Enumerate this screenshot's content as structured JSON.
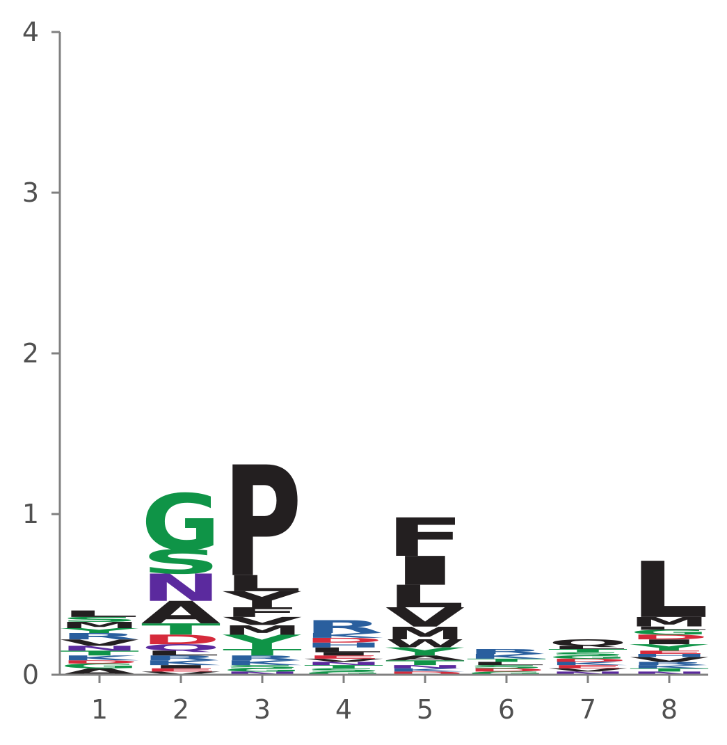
{
  "chart_data": {
    "type": "sequence-logo",
    "title": "",
    "xlabel": "",
    "ylabel": "",
    "ylim": [
      0,
      4
    ],
    "y_ticks": [
      "0",
      "1",
      "2",
      "3",
      "4"
    ],
    "x_ticks": [
      "1",
      "2",
      "3",
      "4",
      "5",
      "6",
      "7",
      "8"
    ],
    "colors": {
      "black": "#231f20",
      "green": "#0f9447",
      "purple": "#5b2a9e",
      "red": "#d62a3b",
      "blue": "#2a5f9e",
      "axis": "#808080",
      "tick_text": "#505050"
    },
    "positions": [
      {
        "position": "1",
        "letters": [
          {
            "letter": "A",
            "value": 0.04,
            "color": "black"
          },
          {
            "letter": "G",
            "value": 0.03,
            "color": "green"
          },
          {
            "letter": "D",
            "value": 0.02,
            "color": "red"
          },
          {
            "letter": "K",
            "value": 0.03,
            "color": "blue"
          },
          {
            "letter": "T",
            "value": 0.03,
            "color": "green"
          },
          {
            "letter": "N",
            "value": 0.03,
            "color": "purple"
          },
          {
            "letter": "V",
            "value": 0.04,
            "color": "black"
          },
          {
            "letter": "R",
            "value": 0.04,
            "color": "blue"
          },
          {
            "letter": "Y",
            "value": 0.03,
            "color": "green"
          },
          {
            "letter": "M",
            "value": 0.04,
            "color": "black"
          },
          {
            "letter": "S",
            "value": 0.03,
            "color": "green"
          },
          {
            "letter": "L",
            "value": 0.04,
            "color": "black"
          }
        ]
      },
      {
        "position": "2",
        "letters": [
          {
            "letter": "V",
            "value": 0.02,
            "color": "black"
          },
          {
            "letter": "E",
            "value": 0.02,
            "color": "red"
          },
          {
            "letter": "I",
            "value": 0.02,
            "color": "black"
          },
          {
            "letter": "K",
            "value": 0.03,
            "color": "blue"
          },
          {
            "letter": "R",
            "value": 0.03,
            "color": "blue"
          },
          {
            "letter": "L",
            "value": 0.03,
            "color": "black"
          },
          {
            "letter": "Q",
            "value": 0.04,
            "color": "purple"
          },
          {
            "letter": "D",
            "value": 0.06,
            "color": "red"
          },
          {
            "letter": "T",
            "value": 0.07,
            "color": "green"
          },
          {
            "letter": "A",
            "value": 0.14,
            "color": "black"
          },
          {
            "letter": "N",
            "value": 0.17,
            "color": "purple"
          },
          {
            "letter": "S",
            "value": 0.15,
            "color": "green"
          },
          {
            "letter": "G",
            "value": 0.35,
            "color": "green"
          }
        ]
      },
      {
        "position": "3",
        "letters": [
          {
            "letter": "N",
            "value": 0.02,
            "color": "purple"
          },
          {
            "letter": "G",
            "value": 0.02,
            "color": "green"
          },
          {
            "letter": "S",
            "value": 0.02,
            "color": "green"
          },
          {
            "letter": "K",
            "value": 0.03,
            "color": "blue"
          },
          {
            "letter": "R",
            "value": 0.03,
            "color": "blue"
          },
          {
            "letter": "T",
            "value": 0.04,
            "color": "green"
          },
          {
            "letter": "Y",
            "value": 0.09,
            "color": "green"
          },
          {
            "letter": "M",
            "value": 0.06,
            "color": "black"
          },
          {
            "letter": "V",
            "value": 0.05,
            "color": "black"
          },
          {
            "letter": "F",
            "value": 0.06,
            "color": "black"
          },
          {
            "letter": "Y",
            "value": 0.1,
            "color": "black"
          },
          {
            "letter": "L",
            "value": 0.1,
            "color": "black"
          },
          {
            "letter": "P",
            "value": 0.69,
            "color": "black"
          }
        ]
      },
      {
        "position": "4",
        "letters": [
          {
            "letter": "G",
            "value": 0.02,
            "color": "green"
          },
          {
            "letter": "S",
            "value": 0.02,
            "color": "green"
          },
          {
            "letter": "T",
            "value": 0.02,
            "color": "green"
          },
          {
            "letter": "N",
            "value": 0.02,
            "color": "purple"
          },
          {
            "letter": "V",
            "value": 0.02,
            "color": "black"
          },
          {
            "letter": "E",
            "value": 0.02,
            "color": "red"
          },
          {
            "letter": "I",
            "value": 0.02,
            "color": "black"
          },
          {
            "letter": "L",
            "value": 0.03,
            "color": "black"
          },
          {
            "letter": "H",
            "value": 0.03,
            "color": "blue"
          },
          {
            "letter": "D",
            "value": 0.03,
            "color": "red"
          },
          {
            "letter": "K",
            "value": 0.03,
            "color": "blue"
          },
          {
            "letter": "R",
            "value": 0.08,
            "color": "blue"
          }
        ]
      },
      {
        "position": "5",
        "letters": [
          {
            "letter": "D",
            "value": 0.02,
            "color": "red"
          },
          {
            "letter": "K",
            "value": 0.02,
            "color": "blue"
          },
          {
            "letter": "N",
            "value": 0.02,
            "color": "purple"
          },
          {
            "letter": "T",
            "value": 0.03,
            "color": "green"
          },
          {
            "letter": "A",
            "value": 0.03,
            "color": "black"
          },
          {
            "letter": "Y",
            "value": 0.05,
            "color": "green"
          },
          {
            "letter": "W",
            "value": 0.05,
            "color": "black"
          },
          {
            "letter": "M",
            "value": 0.08,
            "color": "black"
          },
          {
            "letter": "V",
            "value": 0.12,
            "color": "black"
          },
          {
            "letter": "L",
            "value": 0.14,
            "color": "black"
          },
          {
            "letter": "I",
            "value": 0.18,
            "color": "black"
          },
          {
            "letter": "F",
            "value": 0.24,
            "color": "black"
          }
        ]
      },
      {
        "position": "6",
        "letters": [
          {
            "letter": "G",
            "value": 0.02,
            "color": "green"
          },
          {
            "letter": "D",
            "value": 0.02,
            "color": "red"
          },
          {
            "letter": "S",
            "value": 0.02,
            "color": "green"
          },
          {
            "letter": "L",
            "value": 0.02,
            "color": "black"
          },
          {
            "letter": "T",
            "value": 0.02,
            "color": "green"
          },
          {
            "letter": "K",
            "value": 0.03,
            "color": "blue"
          },
          {
            "letter": "R",
            "value": 0.03,
            "color": "blue"
          }
        ]
      },
      {
        "position": "7",
        "letters": [
          {
            "letter": "N",
            "value": 0.02,
            "color": "purple"
          },
          {
            "letter": "V",
            "value": 0.02,
            "color": "black"
          },
          {
            "letter": "E",
            "value": 0.02,
            "color": "red"
          },
          {
            "letter": "K",
            "value": 0.02,
            "color": "blue"
          },
          {
            "letter": "D",
            "value": 0.02,
            "color": "red"
          },
          {
            "letter": "G",
            "value": 0.02,
            "color": "green"
          },
          {
            "letter": "S",
            "value": 0.02,
            "color": "green"
          },
          {
            "letter": "T",
            "value": 0.02,
            "color": "green"
          },
          {
            "letter": "L",
            "value": 0.02,
            "color": "black"
          },
          {
            "letter": "Q",
            "value": 0.04,
            "color": "black"
          }
        ]
      },
      {
        "position": "8",
        "letters": [
          {
            "letter": "N",
            "value": 0.02,
            "color": "purple"
          },
          {
            "letter": "T",
            "value": 0.02,
            "color": "green"
          },
          {
            "letter": "K",
            "value": 0.02,
            "color": "blue"
          },
          {
            "letter": "R",
            "value": 0.02,
            "color": "blue"
          },
          {
            "letter": "V",
            "value": 0.03,
            "color": "black"
          },
          {
            "letter": "H",
            "value": 0.02,
            "color": "blue"
          },
          {
            "letter": "E",
            "value": 0.02,
            "color": "red"
          },
          {
            "letter": "Y",
            "value": 0.04,
            "color": "green"
          },
          {
            "letter": "I",
            "value": 0.03,
            "color": "black"
          },
          {
            "letter": "D",
            "value": 0.03,
            "color": "red"
          },
          {
            "letter": "G",
            "value": 0.03,
            "color": "green"
          },
          {
            "letter": "L",
            "value": 0.02,
            "color": "black"
          },
          {
            "letter": "M",
            "value": 0.06,
            "color": "black"
          },
          {
            "letter": "L",
            "value": 0.35,
            "color": "black"
          }
        ]
      }
    ]
  }
}
